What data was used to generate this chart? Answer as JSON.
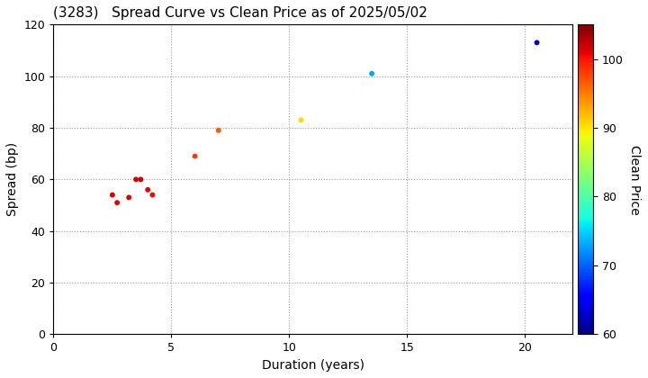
{
  "title": "(3283)   Spread Curve vs Clean Price as of 2025/05/02",
  "xlabel": "Duration (years)",
  "ylabel": "Spread (bp)",
  "colorbar_label": "Clean Price",
  "xlim": [
    0,
    22
  ],
  "ylim": [
    0,
    120
  ],
  "xticks": [
    0,
    5,
    10,
    15,
    20
  ],
  "yticks": [
    0,
    20,
    40,
    60,
    80,
    100,
    120
  ],
  "cmap_min": 60,
  "cmap_max": 105,
  "colorbar_ticks": [
    60,
    70,
    80,
    90,
    100
  ],
  "points": [
    {
      "duration": 2.5,
      "spread": 54,
      "clean_price": 101.5
    },
    {
      "duration": 2.7,
      "spread": 51,
      "clean_price": 101.0
    },
    {
      "duration": 3.2,
      "spread": 53,
      "clean_price": 101.2
    },
    {
      "duration": 3.5,
      "spread": 60,
      "clean_price": 101.8
    },
    {
      "duration": 3.7,
      "spread": 60,
      "clean_price": 102.0
    },
    {
      "duration": 4.0,
      "spread": 56,
      "clean_price": 101.0
    },
    {
      "duration": 4.2,
      "spread": 54,
      "clean_price": 100.5
    },
    {
      "duration": 6.0,
      "spread": 69,
      "clean_price": 98.0
    },
    {
      "duration": 7.0,
      "spread": 79,
      "clean_price": 96.5
    },
    {
      "duration": 10.5,
      "spread": 83,
      "clean_price": 90.5
    },
    {
      "duration": 13.5,
      "spread": 101,
      "clean_price": 73.0
    },
    {
      "duration": 20.5,
      "spread": 113,
      "clean_price": 63.0
    }
  ],
  "background_color": "#ffffff",
  "grid_color": "#999999",
  "marker_size": 18
}
